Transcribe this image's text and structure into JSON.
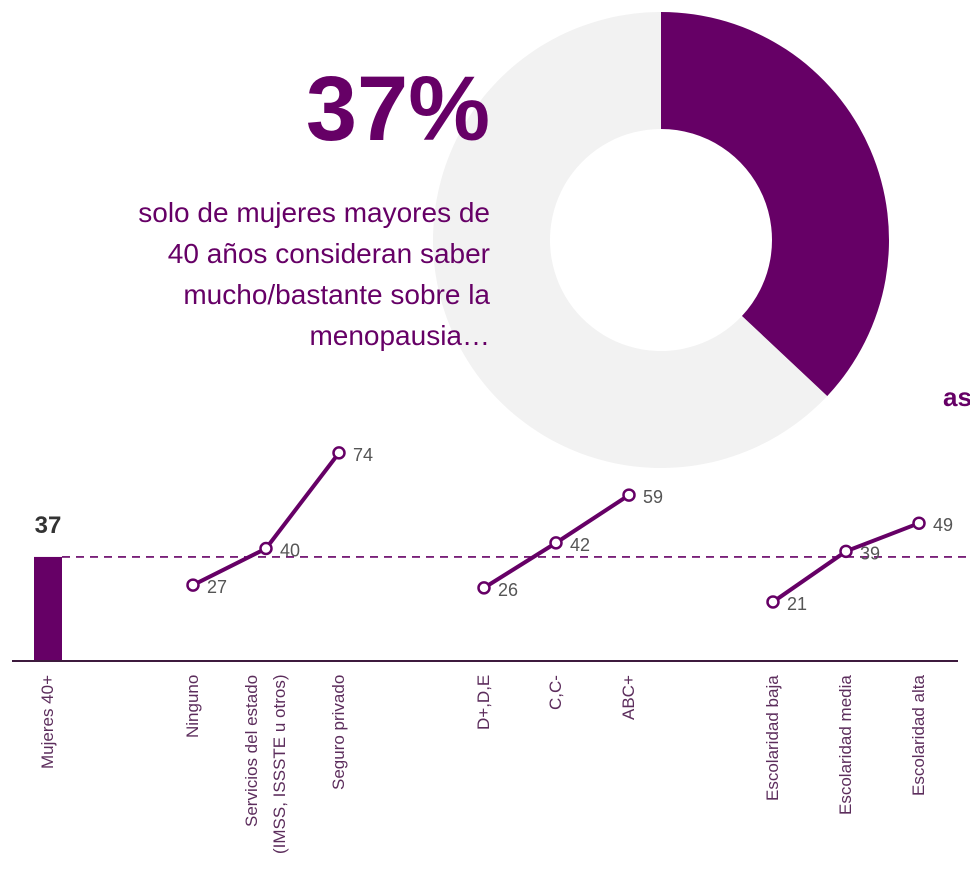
{
  "chart_data": [
    {
      "type": "pie",
      "title": "37%",
      "subtitle_lines": [
        "solo de mujeres mayores de",
        "40 años consideran saber",
        "mucho/bastante sobre la",
        "menopausia…"
      ],
      "values": [
        37,
        63
      ],
      "value_labels": [
        "37%",
        null
      ],
      "colors": [
        "#660066",
        "#f2f2f2"
      ],
      "annotation": "as"
    },
    {
      "type": "line",
      "categories": [
        "Mujeres 40+",
        "Ninguno",
        "Servicios del estado\n(IMSS, ISSSTE u otros)",
        "Seguro privado",
        "D+,D,E",
        "C,C-",
        "ABC+",
        "Escolaridad baja",
        "Escolaridad media",
        "Escolaridad alta"
      ],
      "ylim": [
        0,
        80
      ],
      "color": "#660066",
      "series": [
        {
          "type": "bar",
          "values": [
            37,
            null,
            null,
            null,
            null,
            null,
            null,
            null,
            null,
            null
          ]
        },
        {
          "type": "line",
          "values": [
            null,
            27,
            40,
            74,
            null,
            null,
            null,
            null,
            null,
            null
          ]
        },
        {
          "type": "line",
          "values": [
            null,
            null,
            null,
            null,
            26,
            42,
            59,
            null,
            null,
            null
          ]
        },
        {
          "type": "line",
          "values": [
            null,
            null,
            null,
            null,
            null,
            null,
            null,
            21,
            39,
            49
          ]
        }
      ]
    }
  ]
}
